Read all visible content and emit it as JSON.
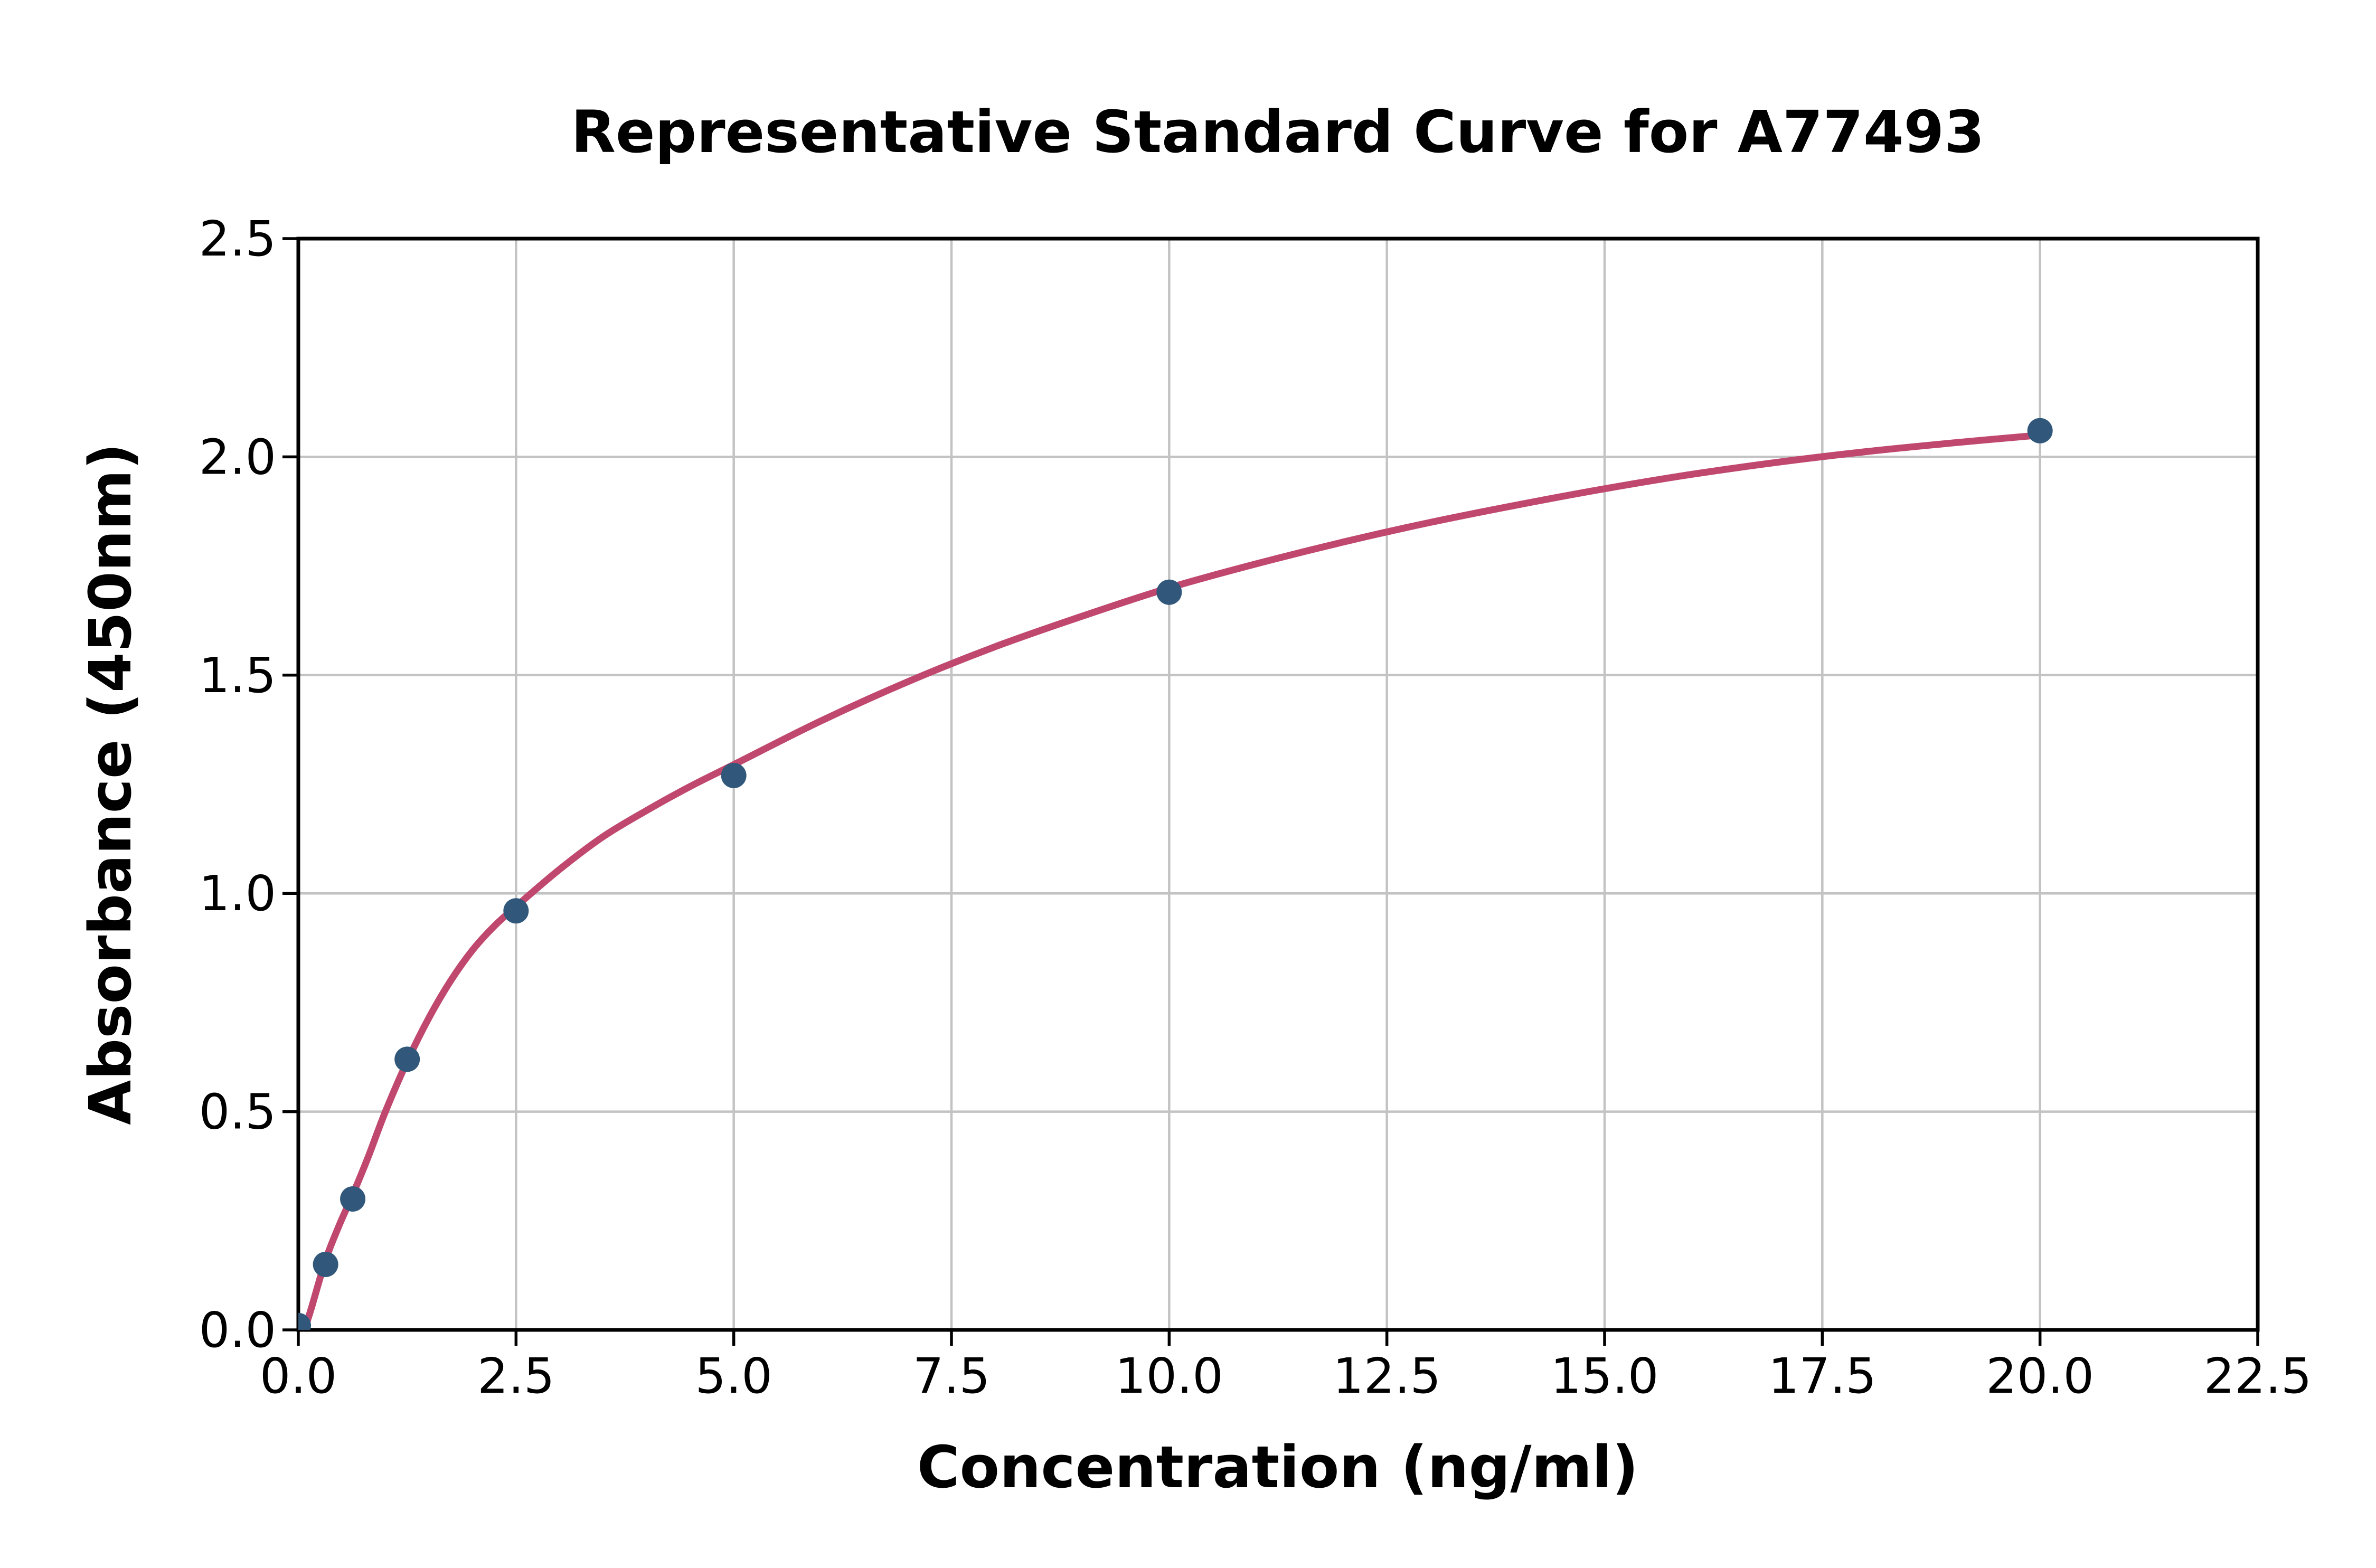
{
  "chart_data": {
    "type": "scatter",
    "title": "Representative Standard Curve for A77493",
    "xlabel": "Concentration (ng/ml)",
    "ylabel": "Absorbance (450nm)",
    "xlim": [
      0,
      22.5
    ],
    "ylim": [
      0,
      2.5
    ],
    "grid": true,
    "legend": "none",
    "x_ticks": {
      "values": [
        0,
        2.5,
        5,
        7.5,
        10,
        12.5,
        15,
        17.5,
        20,
        22.5
      ],
      "labels": [
        "0.0",
        "2.5",
        "5.0",
        "7.5",
        "10.0",
        "12.5",
        "15.0",
        "17.5",
        "20.0",
        "22.5"
      ]
    },
    "y_ticks": {
      "values": [
        0,
        0.5,
        1,
        1.5,
        2,
        2.5
      ],
      "labels": [
        "0.0",
        "0.5",
        "1.0",
        "1.5",
        "2.0",
        "2.5"
      ]
    },
    "points": [
      {
        "x": 0,
        "y": 0.01
      },
      {
        "x": 0.313,
        "y": 0.15
      },
      {
        "x": 0.625,
        "y": 0.3
      },
      {
        "x": 1.25,
        "y": 0.62
      },
      {
        "x": 2.5,
        "y": 0.96
      },
      {
        "x": 5,
        "y": 1.27
      },
      {
        "x": 10,
        "y": 1.69
      },
      {
        "x": 20,
        "y": 2.06
      }
    ],
    "fit_curve": {
      "model": "4PL fit (sampled)",
      "x": [
        0.07,
        0.15,
        0.313,
        0.47,
        0.625,
        0.8,
        1.0,
        1.25,
        1.5,
        1.75,
        2.0,
        2.25,
        2.5,
        3.0,
        3.5,
        4.0,
        4.5,
        5.0,
        6.0,
        7.0,
        8.0,
        9.0,
        10.0,
        11,
        12,
        13,
        14,
        15,
        16,
        17,
        18,
        19,
        20
      ],
      "y": [
        0.0,
        0.05,
        0.16,
        0.24,
        0.31,
        0.395,
        0.5,
        0.615,
        0.715,
        0.8,
        0.87,
        0.925,
        0.97,
        1.055,
        1.13,
        1.19,
        1.245,
        1.295,
        1.395,
        1.485,
        1.565,
        1.635,
        1.7,
        1.755,
        1.805,
        1.85,
        1.89,
        1.927,
        1.96,
        1.988,
        2.012,
        2.032,
        2.05
      ]
    },
    "colors": {
      "point": "#31587a",
      "curve": "#c0486f",
      "grid": "#c3c3c3",
      "axis": "#000000",
      "background": "#ffffff"
    }
  }
}
